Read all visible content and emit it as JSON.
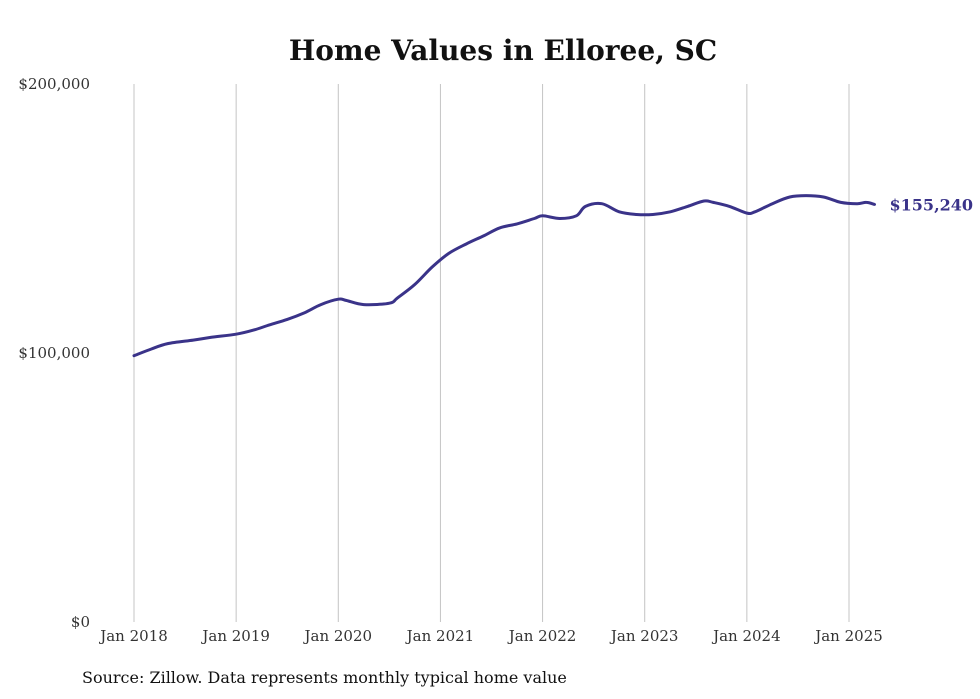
{
  "chart_data": {
    "type": "line",
    "title": "Home Values in Elloree, SC",
    "xlabel": "",
    "ylabel": "",
    "ylim": [
      0,
      200000
    ],
    "yticks": [
      {
        "value": 0,
        "label": "$0"
      },
      {
        "value": 100000,
        "label": "$100,000"
      },
      {
        "value": 200000,
        "label": "$200,000"
      }
    ],
    "xticks": [
      {
        "value": 2018.0,
        "label": "Jan 2018"
      },
      {
        "value": 2019.0,
        "label": "Jan 2019"
      },
      {
        "value": 2020.0,
        "label": "Jan 2020"
      },
      {
        "value": 2021.0,
        "label": "Jan 2021"
      },
      {
        "value": 2022.0,
        "label": "Jan 2022"
      },
      {
        "value": 2023.0,
        "label": "Jan 2023"
      },
      {
        "value": 2024.0,
        "label": "Jan 2024"
      },
      {
        "value": 2025.0,
        "label": "Jan 2025"
      }
    ],
    "xlim": [
      2018.0,
      2025.25
    ],
    "grid": "vertical",
    "line_color": "#3a3389",
    "series": [
      {
        "points": [
          [
            2018.0,
            99000
          ],
          [
            2018.17,
            101500
          ],
          [
            2018.33,
            103500
          ],
          [
            2018.58,
            104800
          ],
          [
            2018.75,
            105800
          ],
          [
            2019.0,
            107000
          ],
          [
            2019.17,
            108500
          ],
          [
            2019.33,
            110500
          ],
          [
            2019.5,
            112500
          ],
          [
            2019.67,
            115000
          ],
          [
            2019.83,
            118000
          ],
          [
            2020.0,
            120000
          ],
          [
            2020.08,
            119500
          ],
          [
            2020.25,
            118000
          ],
          [
            2020.5,
            118500
          ],
          [
            2020.58,
            120500
          ],
          [
            2020.75,
            125500
          ],
          [
            2020.92,
            132000
          ],
          [
            2021.08,
            137000
          ],
          [
            2021.25,
            140500
          ],
          [
            2021.42,
            143500
          ],
          [
            2021.58,
            146500
          ],
          [
            2021.75,
            148000
          ],
          [
            2021.92,
            150000
          ],
          [
            2022.0,
            151000
          ],
          [
            2022.17,
            150000
          ],
          [
            2022.33,
            151000
          ],
          [
            2022.42,
            154500
          ],
          [
            2022.58,
            155500
          ],
          [
            2022.75,
            152500
          ],
          [
            2022.92,
            151500
          ],
          [
            2023.08,
            151500
          ],
          [
            2023.25,
            152500
          ],
          [
            2023.42,
            154500
          ],
          [
            2023.58,
            156500
          ],
          [
            2023.67,
            156000
          ],
          [
            2023.83,
            154500
          ],
          [
            2024.0,
            152000
          ],
          [
            2024.08,
            152500
          ],
          [
            2024.25,
            155500
          ],
          [
            2024.42,
            158000
          ],
          [
            2024.58,
            158500
          ],
          [
            2024.75,
            158000
          ],
          [
            2024.92,
            156000
          ],
          [
            2025.08,
            155500
          ],
          [
            2025.17,
            156000
          ],
          [
            2025.25,
            155240
          ]
        ]
      }
    ],
    "end_label": "$155,240",
    "source_note": "Source: Zillow. Data represents monthly typical home value"
  }
}
